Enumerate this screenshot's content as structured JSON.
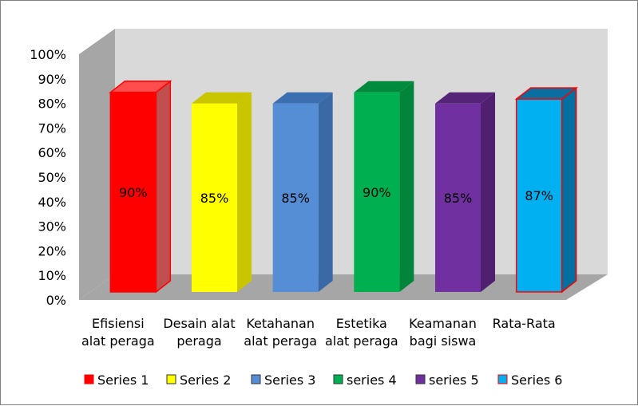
{
  "chart_data": {
    "type": "bar",
    "style": "3d-column",
    "categories": [
      [
        "Efisiensi",
        "alat peraga"
      ],
      [
        "Desain alat",
        "peraga"
      ],
      [
        "Ketahanan",
        "alat peraga"
      ],
      [
        "Estetika",
        "alat peraga"
      ],
      [
        "Keamanan",
        "bagi siswa"
      ],
      [
        "Rata-Rata"
      ]
    ],
    "series": [
      {
        "name": "Series 1",
        "values": [
          90,
          null,
          null,
          null,
          null,
          null
        ],
        "color": "#ff0000",
        "side": "#c0504d",
        "top": "#ff4d4d",
        "border": "#ff0000"
      },
      {
        "name": "Series 2",
        "values": [
          null,
          85,
          null,
          null,
          null,
          null
        ],
        "color": "#ffff00",
        "side": "#c9c600",
        "top": "#c9c600",
        "border": "none"
      },
      {
        "name": "Series 3",
        "values": [
          null,
          null,
          85,
          null,
          null,
          null
        ],
        "color": "#558ed5",
        "side": "#3a6aa5",
        "top": "#3b6fb0",
        "border": "none"
      },
      {
        "name": "series 4",
        "values": [
          null,
          null,
          null,
          90,
          null,
          null
        ],
        "color": "#00b050",
        "side": "#00853b",
        "top": "#008a3e",
        "border": "none"
      },
      {
        "name": "series 5",
        "values": [
          null,
          null,
          null,
          null,
          85,
          null
        ],
        "color": "#7030a0",
        "side": "#4f2070",
        "top": "#552478",
        "border": "none"
      },
      {
        "name": "Series 6",
        "values": [
          null,
          null,
          null,
          null,
          null,
          87
        ],
        "color": "#00b0f0",
        "side": "#0070a0",
        "top": "#0a6fa0",
        "border": "#ff0000"
      }
    ],
    "data_labels": [
      "90%",
      "85%",
      "85%",
      "90%",
      "85%",
      "87%"
    ],
    "yticks": [
      "0%",
      "10%",
      "20%",
      "30%",
      "40%",
      "50%",
      "60%",
      "70%",
      "80%",
      "90%",
      "100%"
    ],
    "ylim": [
      0,
      100
    ],
    "legend_position": "bottom",
    "grid": false,
    "wall_color": "#d9d9d9",
    "floor_color": "#a6a6a6",
    "side_wall_color": "#a6a6a6"
  }
}
